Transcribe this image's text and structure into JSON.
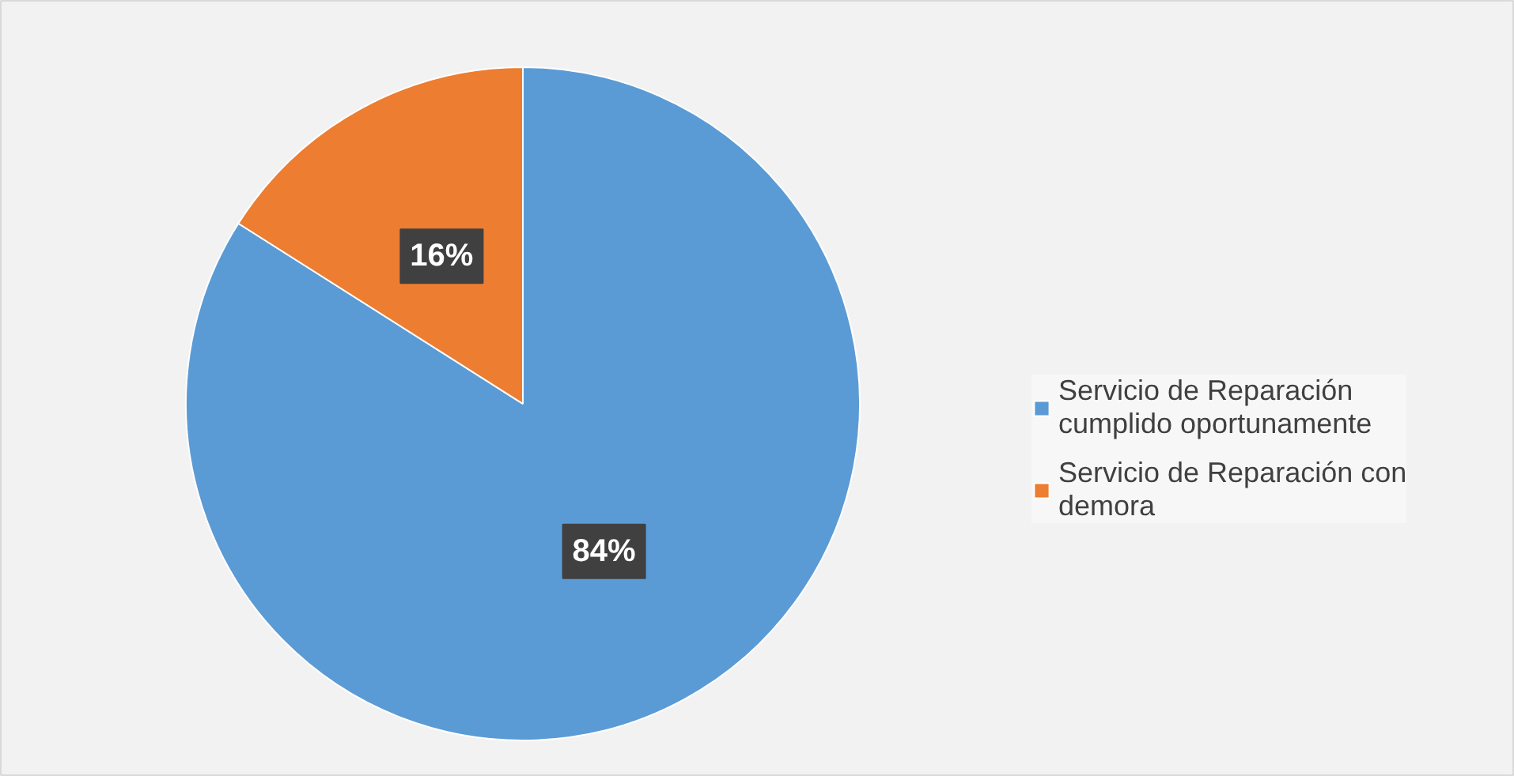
{
  "chart_data": {
    "type": "pie",
    "categories": [
      "Servicio de Reparación cumplido oportunamente",
      "Servicio de Reparación con demora"
    ],
    "values": [
      84,
      16
    ],
    "colors": [
      "#5b9bd5",
      "#ed7d31"
    ],
    "value_labels": [
      "84%",
      "16%"
    ],
    "legend": "right"
  }
}
